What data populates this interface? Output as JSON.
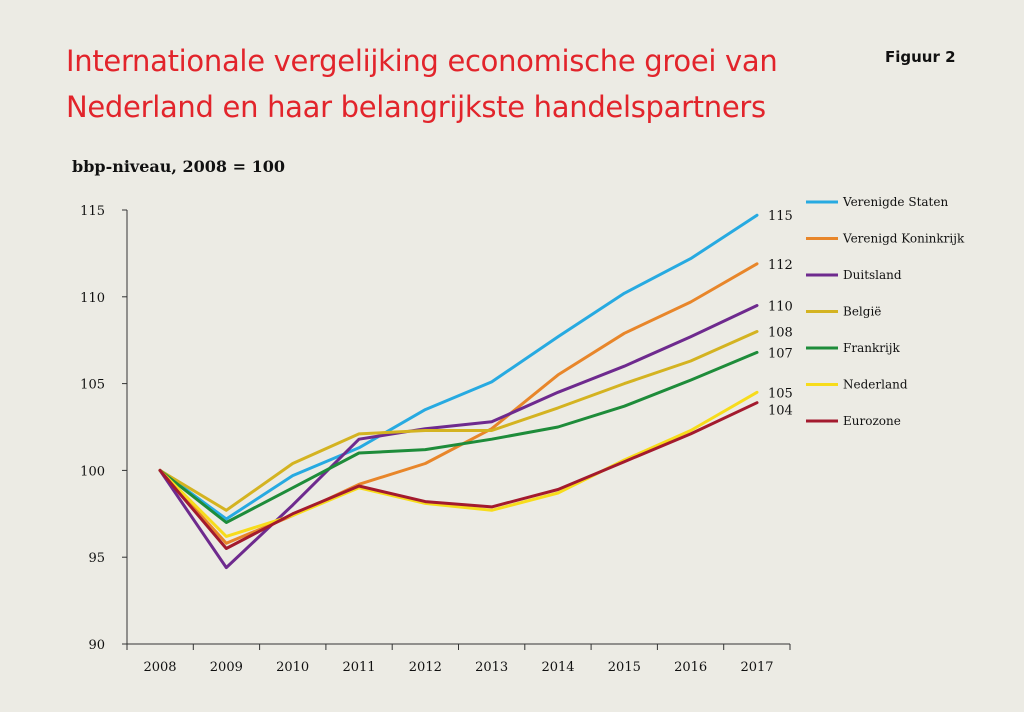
{
  "header": {
    "title_line1": "Internationale vergelijking economische groei van",
    "title_line2": "Nederland en haar belangrijkste handelspartners",
    "figure_label": "Figuur 2",
    "subtitle": "bbp-niveau, 2008 = 100"
  },
  "chart_data": {
    "type": "line",
    "title": "Internationale vergelijking economische groei van Nederland en haar belangrijkste handelspartners",
    "ylabel": "bbp-niveau, 2008 = 100",
    "xlabel": "",
    "ylim": [
      90,
      115
    ],
    "yticks": [
      90,
      95,
      100,
      105,
      110,
      115
    ],
    "x": [
      "2008",
      "2009",
      "2010",
      "2011",
      "2012",
      "2013",
      "2014",
      "2015",
      "2016",
      "2017"
    ],
    "grid": false,
    "legend_position": "right",
    "series": [
      {
        "name": "Verenigde Staten",
        "color": "#27aae1",
        "end_label": "115",
        "values": [
          100,
          97.2,
          99.7,
          101.3,
          103.5,
          105.1,
          107.7,
          110.2,
          112.2,
          114.7
        ]
      },
      {
        "name": "Verenigd Koninkrijk",
        "color": "#e8862a",
        "end_label": "112",
        "values": [
          100,
          95.8,
          97.4,
          99.2,
          100.4,
          102.4,
          105.5,
          107.9,
          109.7,
          111.9
        ]
      },
      {
        "name": "Duitsland",
        "color": "#6e2a8e",
        "end_label": "110",
        "values": [
          100,
          94.4,
          98.0,
          101.8,
          102.4,
          102.8,
          104.5,
          106.0,
          107.7,
          109.5
        ]
      },
      {
        "name": "België",
        "color": "#d4b321",
        "end_label": "108",
        "values": [
          100,
          97.7,
          100.4,
          102.1,
          102.3,
          102.3,
          103.6,
          105.0,
          106.3,
          108.0
        ]
      },
      {
        "name": "Frankrijk",
        "color": "#1e8c3a",
        "end_label": "107",
        "values": [
          100,
          97.0,
          99.0,
          101.0,
          101.2,
          101.8,
          102.5,
          103.7,
          105.2,
          106.8
        ]
      },
      {
        "name": "Nederland",
        "color": "#f7dc1b",
        "end_label": "105",
        "values": [
          100,
          96.2,
          97.4,
          99.0,
          98.1,
          97.7,
          98.7,
          100.6,
          102.3,
          104.5
        ]
      },
      {
        "name": "Eurozone",
        "color": "#a31a2e",
        "end_label": "104",
        "values": [
          100,
          95.5,
          97.5,
          99.1,
          98.2,
          97.9,
          98.9,
          100.5,
          102.1,
          103.9
        ]
      }
    ]
  }
}
